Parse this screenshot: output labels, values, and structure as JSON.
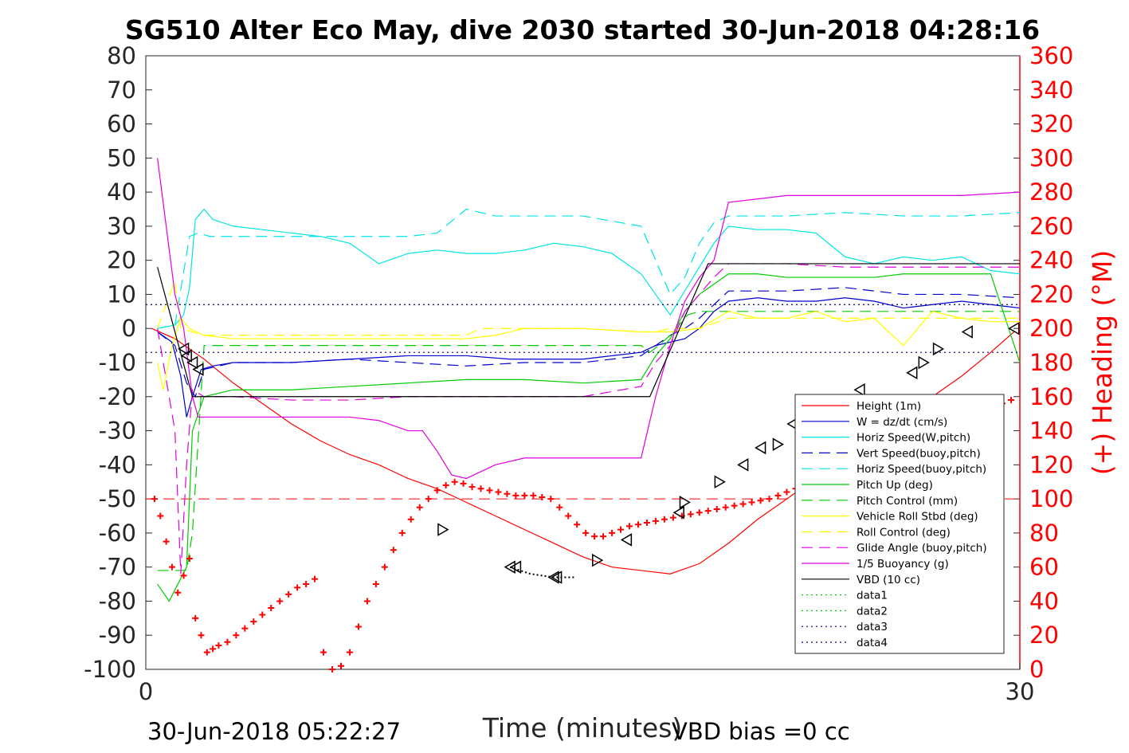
{
  "chart_data": {
    "type": "line",
    "title": "SG510 Alter Eco May, dive 2030 started 30-Jun-2018 04:28:16",
    "xlabel": "Time (minutes)",
    "ylabel": "",
    "ylabel_right": "(+) Heading (°M)",
    "xlim": [
      0,
      30
    ],
    "ylim": [
      -100,
      80
    ],
    "ylim_right": [
      0,
      360
    ],
    "x_ticks": [
      "0",
      "30"
    ],
    "y_ticks": [
      "80",
      "70",
      "60",
      "50",
      "40",
      "30",
      "20",
      "10",
      "0",
      "-10",
      "-20",
      "-30",
      "-40",
      "-50",
      "-60",
      "-70",
      "-80",
      "-90",
      "-100"
    ],
    "y_ticks_right": [
      "360",
      "340",
      "320",
      "300",
      "280",
      "260",
      "240",
      "220",
      "200",
      "180",
      "160",
      "140",
      "120",
      "100",
      "80",
      "60",
      "40",
      "20",
      "0"
    ],
    "legend_position": "bottom-right",
    "grid": false,
    "footer_left": "30-Jun-2018 05:22:27",
    "footer_right": "VBD bias =0 cc",
    "series": [
      {
        "name": "Height (1m)",
        "color": "#ff0000",
        "style": "solid",
        "x": [
          0.2,
          1,
          1.5,
          2,
          3,
          4,
          5,
          6,
          7,
          8,
          9,
          10,
          11,
          12,
          13,
          14,
          15,
          16,
          17,
          18,
          19,
          20,
          21,
          22,
          23,
          24,
          25,
          26,
          27,
          28,
          29,
          29.8
        ],
        "y": [
          0,
          -3,
          -6,
          -9,
          -16,
          -22,
          -28,
          -33,
          -37,
          -40,
          -44,
          -47,
          -51,
          -55,
          -59,
          -63,
          -67,
          -70,
          -71,
          -72,
          -69,
          -63,
          -56,
          -50,
          -44,
          -38,
          -32,
          -28,
          -20,
          -14,
          -7,
          -1
        ]
      },
      {
        "name": "W = dz/dt (cm/s)",
        "color": "#0000cc",
        "style": "solid",
        "x": [
          0.4,
          0.9,
          1.2,
          1.4,
          1.6,
          1.9,
          2.3,
          3,
          5,
          7,
          9,
          11,
          12.5,
          13,
          15,
          17,
          17.5,
          18.5,
          19,
          19.5,
          20,
          21,
          22,
          23,
          24,
          25,
          26,
          27,
          28,
          29,
          30
        ],
        "y": [
          -1,
          -4,
          -14,
          -26,
          -20,
          -12,
          -11,
          -10,
          -10,
          -9,
          -8,
          -8,
          -9,
          -9,
          -9,
          -7,
          -5,
          -3,
          0,
          5,
          8,
          9,
          8,
          8,
          9,
          8,
          6,
          7,
          8,
          7,
          6
        ]
      },
      {
        "name": "Horiz Speed(W,pitch)",
        "color": "#00e5e5",
        "style": "solid",
        "x": [
          0.4,
          1,
          1.3,
          1.5,
          1.7,
          2,
          2.3,
          3,
          4,
          5,
          6,
          7,
          7.5,
          8,
          9,
          10,
          11,
          12,
          13,
          14,
          15,
          16,
          17,
          17.5,
          18,
          18.5,
          19,
          19.5,
          20,
          21,
          22,
          23,
          24,
          25,
          26,
          27,
          28,
          29,
          30
        ],
        "y": [
          0,
          1,
          4,
          12,
          32,
          35,
          32,
          30,
          29,
          28,
          27,
          25,
          22,
          19,
          22,
          23,
          22,
          22,
          23,
          25,
          24,
          22,
          16,
          10,
          4,
          11,
          18,
          25,
          30,
          29,
          29,
          28,
          21,
          19,
          21,
          20,
          21,
          17,
          16
        ]
      },
      {
        "name": "Vert Speed(buoy,pitch)",
        "color": "#0000cc",
        "style": "dashed",
        "x": [
          0.4,
          1,
          1.4,
          1.7,
          2,
          3,
          5,
          7,
          9,
          11,
          13,
          15,
          17,
          17.5,
          18,
          18.5,
          19,
          19.5,
          20,
          22,
          24,
          26,
          28,
          30
        ],
        "y": [
          -1,
          -5,
          -16,
          -20,
          -12,
          -10,
          -10,
          -9,
          -10,
          -11,
          -10,
          -10,
          -8,
          -5,
          -2,
          0,
          3,
          7,
          11,
          11,
          12,
          10,
          10,
          9
        ]
      },
      {
        "name": "Horiz Speed(buoy,pitch)",
        "color": "#00e5e5",
        "style": "dashed",
        "x": [
          0.4,
          1,
          1.5,
          1.8,
          2.2,
          3,
          5,
          7,
          9,
          10,
          11,
          12,
          13,
          15,
          17,
          17.5,
          18,
          18.5,
          19,
          19.5,
          20,
          22,
          24,
          26,
          28,
          30
        ],
        "y": [
          0,
          1,
          27,
          28,
          27,
          27,
          27,
          27,
          27,
          28,
          35,
          33,
          33,
          33,
          30,
          20,
          10,
          15,
          25,
          31,
          33,
          33,
          34,
          33,
          33,
          34
        ]
      },
      {
        "name": "Pitch Up (deg)",
        "color": "#00cc00",
        "style": "solid",
        "x": [
          0.4,
          0.8,
          1.1,
          1.4,
          1.6,
          2,
          3,
          5,
          7,
          9,
          11,
          13,
          15,
          17,
          17.5,
          18,
          18.5,
          19,
          19.5,
          20,
          21,
          22,
          23,
          24,
          25,
          26,
          27,
          28,
          29,
          30
        ],
        "y": [
          -75,
          -80,
          -75,
          -70,
          -30,
          -20,
          -18,
          -18,
          -17,
          -16,
          -15,
          -15,
          -16,
          -15,
          -8,
          -3,
          5,
          10,
          13,
          16,
          16,
          15,
          15,
          15,
          15,
          16,
          16,
          16,
          16,
          -10
        ]
      },
      {
        "name": "Pitch Control (mm)",
        "color": "#00cc00",
        "style": "dashed",
        "x": [
          0.4,
          1.2,
          1.4,
          1.6,
          2,
          17,
          17.3,
          17.6,
          18,
          18.6,
          19,
          30
        ],
        "y": [
          -71,
          -71,
          -71,
          -60,
          -5,
          -5,
          -7,
          -5,
          -2,
          4,
          5,
          5
        ]
      },
      {
        "name": "Vehicle Roll Stbd (deg)",
        "color": "#ffff00",
        "style": "solid",
        "x": [
          0.4,
          0.6,
          0.9,
          1.2,
          1.5,
          2,
          3,
          5,
          7,
          9,
          10,
          11,
          12,
          13,
          14,
          15,
          17,
          18,
          19,
          20,
          21,
          22,
          23,
          24,
          25,
          26,
          27,
          28,
          29,
          30
        ],
        "y": [
          -10,
          -18,
          -5,
          3,
          0,
          -2,
          -3,
          -3,
          -3,
          -3,
          -3,
          -3,
          -2,
          0,
          0,
          0,
          -1,
          -1,
          0,
          5,
          3,
          3,
          5,
          2,
          3,
          -5,
          5,
          3,
          2,
          2
        ]
      },
      {
        "name": "Roll Control (deg)",
        "color": "#ffff00",
        "style": "dashed",
        "x": [
          0.4,
          1,
          1.2,
          2,
          5,
          9,
          11,
          11.5,
          15,
          17,
          17.5,
          18,
          19,
          20,
          22,
          24,
          26,
          28,
          29,
          30
        ],
        "y": [
          0,
          14,
          0,
          -2,
          -2,
          -2,
          -2,
          0,
          0,
          -1,
          -1,
          0,
          0,
          3,
          3,
          3,
          3,
          3,
          3,
          3
        ]
      },
      {
        "name": "Glide Angle (buoy,pitch)",
        "color": "#e000e0",
        "style": "dashed",
        "x": [
          0.4,
          1,
          1.2,
          1.4,
          1.6,
          2,
          3,
          5,
          7,
          9,
          11,
          13,
          15,
          17,
          17.5,
          18,
          18.5,
          19,
          19.5,
          20,
          22,
          24,
          26,
          28,
          30
        ],
        "y": [
          0,
          -30,
          -72,
          -40,
          -18,
          -20,
          -20,
          -21,
          -21,
          -20,
          -20,
          -20,
          -20,
          -17,
          -10,
          -5,
          5,
          10,
          15,
          19,
          19,
          18,
          18,
          18,
          18
        ]
      },
      {
        "name": "1/5 Buoyancy (g)",
        "color": "#e000e0",
        "style": "solid",
        "x": [
          0.4,
          0.7,
          1,
          1.3,
          1.6,
          1.8,
          2,
          3,
          5,
          7,
          8,
          9,
          9.5,
          10,
          10.5,
          11,
          12,
          13,
          15,
          17,
          17.5,
          18,
          18.5,
          19,
          19.5,
          20,
          22,
          24,
          26,
          28,
          30
        ],
        "y": [
          50,
          30,
          10,
          0,
          -20,
          -26,
          -26,
          -26,
          -26,
          -26,
          -27,
          -30,
          -30,
          -36,
          -43,
          -44,
          -40,
          -38,
          -38,
          -38,
          -20,
          -5,
          8,
          15,
          20,
          37,
          39,
          39,
          39,
          39,
          40
        ]
      },
      {
        "name": "VBD (10 cc)",
        "color": "#000000",
        "style": "solid",
        "x": [
          0.4,
          1.6,
          17.3,
          19.3,
          30
        ],
        "y": [
          18,
          -20,
          -20,
          19,
          19
        ]
      },
      {
        "name": "data1",
        "color": "#00cc00",
        "style": "dotted",
        "x": [],
        "y": []
      },
      {
        "name": "data2",
        "color": "#00cc00",
        "style": "dotted",
        "x": [],
        "y": []
      },
      {
        "name": "data3",
        "color": "#000080",
        "style": "dotted",
        "x": [
          0,
          30
        ],
        "y": [
          7,
          7
        ]
      },
      {
        "name": "data4",
        "color": "#000080",
        "style": "dotted",
        "x": [
          0,
          30
        ],
        "y": [
          -7,
          -7
        ]
      }
    ],
    "reference_line": {
      "color": "#ff0000",
      "style": "dashed",
      "y": -50
    },
    "black_dotted_segment": {
      "color": "#000000",
      "x": [
        12.5,
        13.2,
        14,
        14.7
      ],
      "y": [
        -70,
        -72,
        -73,
        -73
      ]
    },
    "heading": {
      "name": "(+) Heading (°M)",
      "color": "#ff0000",
      "marker": "+",
      "axis": "right",
      "x": [
        0.3,
        0.5,
        0.7,
        0.9,
        1.1,
        1.3,
        1.5,
        1.7,
        1.9,
        2.1,
        2.3,
        2.5,
        2.8,
        3.1,
        3.4,
        3.7,
        4.0,
        4.3,
        4.6,
        4.9,
        5.2,
        5.5,
        5.8,
        6.1,
        6.4,
        6.7,
        7.0,
        7.3,
        7.6,
        7.9,
        8.2,
        8.5,
        8.8,
        9.1,
        9.4,
        9.7,
        10.0,
        10.3,
        10.6,
        10.9,
        11.2,
        11.5,
        11.8,
        12.1,
        12.4,
        12.7,
        13.0,
        13.3,
        13.6,
        13.9,
        14.2,
        14.5,
        14.8,
        15.1,
        15.4,
        15.7,
        16.0,
        16.3,
        16.6,
        16.9,
        17.2,
        17.5,
        17.8,
        18.1,
        18.4,
        18.7,
        19.0,
        19.3,
        19.6,
        19.9,
        20.2,
        20.5,
        20.8,
        21.1,
        21.4,
        21.7,
        22.0,
        22.3,
        22.6,
        22.9,
        23.2,
        23.5,
        23.8,
        24.0,
        24.2,
        24.4,
        24.7,
        25.0,
        25.2,
        25.5,
        25.8,
        26.1,
        26.4,
        26.7,
        27.0,
        27.3,
        27.6,
        27.9,
        28.2,
        28.5,
        28.8,
        29.1,
        29.4,
        29.7
      ],
      "y": [
        100,
        90,
        75,
        60,
        45,
        55,
        65,
        30,
        20,
        10,
        12,
        14,
        16,
        20,
        24,
        28,
        32,
        36,
        40,
        44,
        48,
        50,
        53,
        10,
        0,
        2,
        10,
        25,
        40,
        50,
        60,
        70,
        80,
        88,
        95,
        100,
        105,
        108,
        110,
        109,
        107,
        106,
        105,
        104,
        103,
        102,
        102,
        102,
        101,
        100,
        95,
        90,
        85,
        80,
        78,
        78,
        80,
        82,
        84,
        85,
        86,
        87,
        88,
        89,
        90,
        91,
        92,
        93,
        94,
        95,
        96,
        97,
        98,
        99,
        100,
        102,
        104,
        106,
        108,
        110,
        112,
        114,
        116,
        118,
        120,
        122,
        124,
        126,
        128,
        130,
        132,
        134,
        136,
        138,
        140,
        142,
        144,
        146,
        148,
        150,
        152,
        154,
        156,
        158
      ]
    },
    "markers": {
      "shape": "triangle",
      "x": [
        1.3,
        1.4,
        1.6,
        1.8,
        10.2,
        12.5,
        12.7,
        14,
        14.1,
        15.5,
        16.5,
        18.3,
        18.5,
        19.7,
        20.5,
        21.1,
        21.7,
        22.2,
        24.5,
        26.3,
        26.7,
        27.2,
        28.2,
        29.8
      ],
      "y": [
        -6,
        -8,
        -10,
        -12,
        -59,
        -70,
        -70,
        -73,
        -73,
        -68,
        -62,
        -54,
        -51,
        -45,
        -40,
        -35,
        -34,
        -28,
        -18,
        -13,
        -10,
        -6,
        -1,
        0
      ],
      "direction": [
        "left",
        "left",
        "left",
        "left",
        "right",
        "left",
        "left",
        "left",
        "left",
        "right",
        "left",
        "left",
        "right",
        "right",
        "left",
        "left",
        "right",
        "left",
        "left",
        "left",
        "right",
        "right",
        "left",
        "left"
      ]
    }
  }
}
